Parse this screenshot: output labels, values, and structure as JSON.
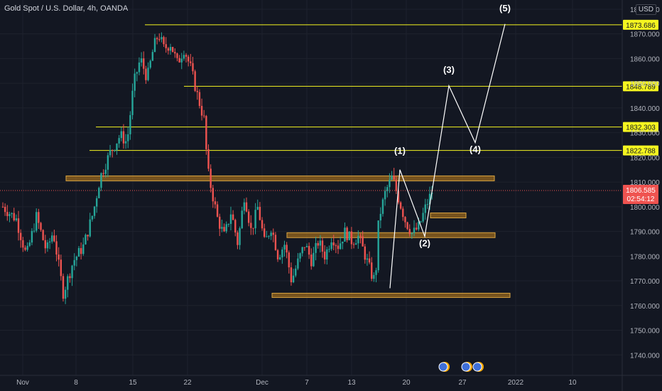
{
  "header": {
    "symbol": "Gold Spot / U.S. Dollar, 4h, OANDA",
    "currency": "USD"
  },
  "colors": {
    "background": "#131722",
    "up": "#26a69a",
    "down": "#ef5350",
    "level": "#f5f520",
    "zone": "#a36d1c",
    "wave": "#ffffff",
    "grid": "#1e222d",
    "axis_text": "#b2b5be"
  },
  "chart_data": {
    "type": "candlestick",
    "title": "Gold Spot / U.S. Dollar, 4h, OANDA",
    "ylim": [
      1730,
      1882
    ],
    "y_ticks": [
      1740,
      1750,
      1760,
      1770,
      1780,
      1790,
      1800,
      1810,
      1820,
      1830,
      1840,
      1850,
      1860,
      1870,
      1880
    ],
    "x_ticks": [
      "Nov",
      "8",
      "15",
      "22",
      "Dec",
      "7",
      "13",
      "20",
      "27",
      "2022",
      "10"
    ],
    "price_points": [
      {
        "t": 0,
        "p": 1800
      },
      {
        "t": 2,
        "p": 1795
      },
      {
        "t": 3.5,
        "p": 1780
      },
      {
        "t": 5,
        "p": 1796
      },
      {
        "t": 6.5,
        "p": 1782
      },
      {
        "t": 7.5,
        "p": 1790
      },
      {
        "t": 9,
        "p": 1765
      },
      {
        "t": 10.5,
        "p": 1778
      },
      {
        "t": 12,
        "p": 1784
      },
      {
        "t": 13.5,
        "p": 1798
      },
      {
        "t": 14.5,
        "p": 1812
      },
      {
        "t": 16,
        "p": 1822
      },
      {
        "t": 17.5,
        "p": 1829
      },
      {
        "t": 18.5,
        "p": 1826
      },
      {
        "t": 19.5,
        "p": 1850
      },
      {
        "t": 20.5,
        "p": 1860
      },
      {
        "t": 21.5,
        "p": 1852
      },
      {
        "t": 22.5,
        "p": 1865
      },
      {
        "t": 23.2,
        "p": 1870
      },
      {
        "t": 24,
        "p": 1864
      },
      {
        "t": 25,
        "p": 1866
      },
      {
        "t": 26,
        "p": 1858
      },
      {
        "t": 27,
        "p": 1864
      },
      {
        "t": 28,
        "p": 1856
      },
      {
        "t": 29,
        "p": 1845
      },
      {
        "t": 30,
        "p": 1835
      },
      {
        "t": 30.5,
        "p": 1815
      },
      {
        "t": 31,
        "p": 1808
      },
      {
        "t": 32,
        "p": 1795
      },
      {
        "t": 33,
        "p": 1788
      },
      {
        "t": 34,
        "p": 1798
      },
      {
        "t": 35,
        "p": 1785
      },
      {
        "t": 36,
        "p": 1805
      },
      {
        "t": 37,
        "p": 1790
      },
      {
        "t": 38,
        "p": 1800
      },
      {
        "t": 39,
        "p": 1785
      },
      {
        "t": 40,
        "p": 1792
      },
      {
        "t": 41,
        "p": 1780
      },
      {
        "t": 42,
        "p": 1785
      },
      {
        "t": 43,
        "p": 1770
      },
      {
        "t": 44,
        "p": 1778
      },
      {
        "t": 45,
        "p": 1785
      },
      {
        "t": 46,
        "p": 1778
      },
      {
        "t": 47,
        "p": 1786
      },
      {
        "t": 48,
        "p": 1780
      },
      {
        "t": 49,
        "p": 1788
      },
      {
        "t": 50,
        "p": 1784
      },
      {
        "t": 51,
        "p": 1790
      },
      {
        "t": 52,
        "p": 1786
      },
      {
        "t": 53,
        "p": 1788
      },
      {
        "t": 54,
        "p": 1780
      },
      {
        "t": 55,
        "p": 1772
      },
      {
        "t": 55.5,
        "p": 1770
      },
      {
        "t": 56,
        "p": 1795
      },
      {
        "t": 57,
        "p": 1806
      },
      {
        "t": 58,
        "p": 1812
      },
      {
        "t": 59,
        "p": 1803
      },
      {
        "t": 60,
        "p": 1794
      },
      {
        "t": 61,
        "p": 1789
      },
      {
        "t": 62,
        "p": 1792
      },
      {
        "t": 63,
        "p": 1800
      },
      {
        "t": 64,
        "p": 1806.585
      }
    ],
    "levels": [
      {
        "price": 1873.686,
        "label": "1873.686"
      },
      {
        "price": 1848.789,
        "label": "1848.789"
      },
      {
        "price": 1832.303,
        "label": "1832.303"
      },
      {
        "price": 1822.788,
        "label": "1822.788"
      }
    ],
    "zones": [
      {
        "low": 1810.5,
        "high": 1812.5
      },
      {
        "low": 1795.5,
        "high": 1797.5
      },
      {
        "low": 1787.5,
        "high": 1789.5
      },
      {
        "low": 1763.5,
        "high": 1765.0
      }
    ],
    "waves": [
      {
        "label": "(1)",
        "price": 1815
      },
      {
        "label": "(2)",
        "price": 1788
      },
      {
        "label": "(3)",
        "price": 1849
      },
      {
        "label": "(4)",
        "price": 1826
      },
      {
        "label": "(5)",
        "price": 1874
      }
    ],
    "current_price": {
      "value": "1806.585",
      "countdown": "02:54:12"
    }
  }
}
